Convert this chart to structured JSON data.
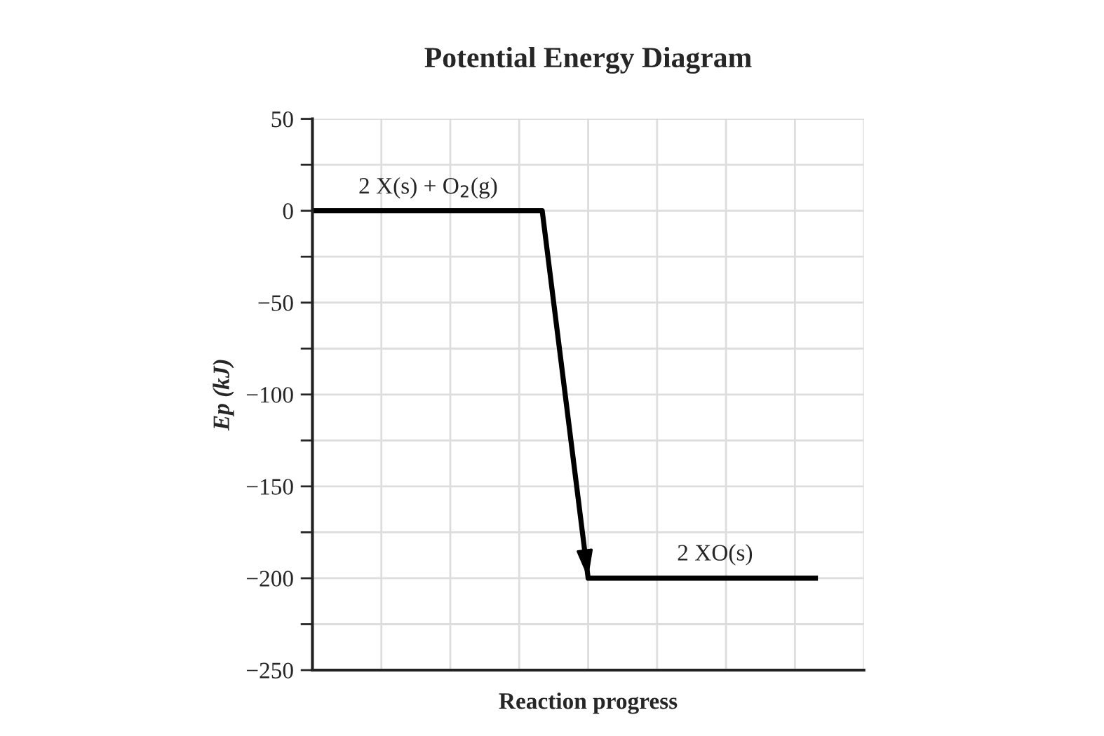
{
  "chart_data": {
    "type": "line",
    "title": "Potential Energy Diagram",
    "xlabel": "Reaction progress",
    "ylabel": "Ep (kJ)",
    "categories": [
      null,
      null,
      null,
      null,
      null,
      null,
      null,
      null,
      null,
      null,
      null,
      null,
      null,
      null,
      null,
      null,
      null,
      null,
      null,
      null,
      null,
      null,
      null
    ],
    "series": [
      {
        "color": "#000000",
        "values": [
          0,
          0,
          0,
          0,
          0,
          0,
          0,
          0,
          0,
          0,
          0,
          -100,
          -200,
          -200,
          -200,
          -200,
          -200,
          -200,
          -200,
          -200,
          -200,
          -200,
          -200
        ]
      }
    ],
    "ylim": [
      -250,
      50
    ],
    "yticks": [
      -250,
      {
        "value": -225,
        "label": null
      },
      -200,
      {
        "value": -175,
        "label": null
      },
      -150,
      {
        "value": -125,
        "label": null
      },
      -100,
      {
        "value": -75,
        "label": null
      },
      -50,
      {
        "value": -25,
        "label": null
      },
      0,
      {
        "value": 25,
        "label": null
      },
      50
    ],
    "tick_labels": "y",
    "grid": true,
    "annotations": [
      "2 X(s) + O$_{2}$(g)",
      "2 XO(s)"
    ]
  }
}
